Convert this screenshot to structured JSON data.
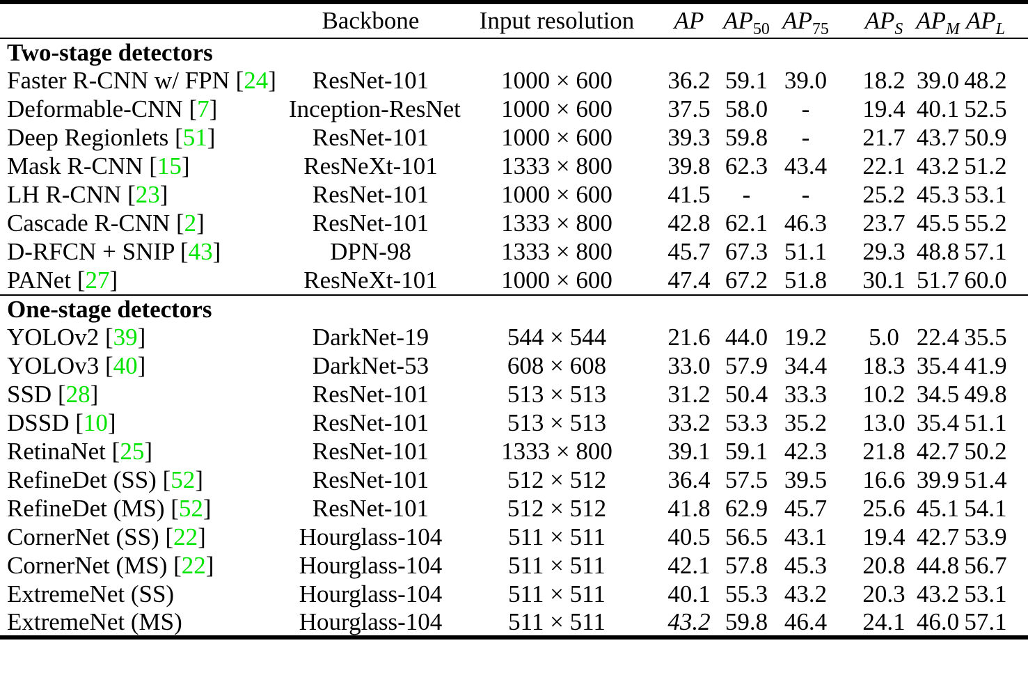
{
  "table": {
    "colors": {
      "citation_green": "#00e400",
      "text_black": "#000000"
    },
    "headers": {
      "method": "",
      "backbone": "Backbone",
      "input_resolution": "Input resolution",
      "metrics": [
        {
          "base": "AP",
          "sub": ""
        },
        {
          "base": "AP",
          "sub": "50",
          "italic_sub": false
        },
        {
          "base": "AP",
          "sub": "75",
          "italic_sub": false
        },
        {
          "base": "AP",
          "sub": "S",
          "italic_sub": true
        },
        {
          "base": "AP",
          "sub": "M",
          "italic_sub": true
        },
        {
          "base": "AP",
          "sub": "L",
          "italic_sub": true
        }
      ]
    },
    "sections": [
      {
        "title": "Two-stage detectors",
        "rows": [
          {
            "method": "Faster R-CNN w/ FPN",
            "cite": "24",
            "backbone": "ResNet-101",
            "resolution": "1000 × 600",
            "ap": "36.2",
            "ap50": "59.1",
            "ap75": "39.0",
            "aps": "18.2",
            "apm": "39.0",
            "apl": "48.2"
          },
          {
            "method": "Deformable-CNN",
            "cite": "7",
            "backbone": "Inception-ResNet",
            "resolution": "1000 × 600",
            "ap": "37.5",
            "ap50": "58.0",
            "ap75": "-",
            "aps": "19.4",
            "apm": "40.1",
            "apl": "52.5"
          },
          {
            "method": "Deep Regionlets",
            "cite": "51",
            "backbone": "ResNet-101",
            "resolution": "1000 × 600",
            "ap": "39.3",
            "ap50": "59.8",
            "ap75": "-",
            "aps": "21.7",
            "apm": "43.7",
            "apl": "50.9"
          },
          {
            "method": "Mask R-CNN",
            "cite": "15",
            "backbone": "ResNeXt-101",
            "resolution": "1333 × 800",
            "ap": "39.8",
            "ap50": "62.3",
            "ap75": "43.4",
            "aps": "22.1",
            "apm": "43.2",
            "apl": "51.2"
          },
          {
            "method": "LH R-CNN",
            "cite": "23",
            "backbone": "ResNet-101",
            "resolution": "1000 × 600",
            "ap": "41.5",
            "ap50": "-",
            "ap75": "-",
            "aps": "25.2",
            "apm": "45.3",
            "apl": "53.1"
          },
          {
            "method": "Cascade R-CNN",
            "cite": "2",
            "backbone": "ResNet-101",
            "resolution": "1333 × 800",
            "ap": "42.8",
            "ap50": "62.1",
            "ap75": "46.3",
            "aps": "23.7",
            "apm": "45.5",
            "apl": "55.2"
          },
          {
            "method": "D-RFCN + SNIP",
            "cite": "43",
            "backbone": "DPN-98",
            "resolution": "1333 × 800",
            "ap": "45.7",
            "ap50": "67.3",
            "ap75": "51.1",
            "aps": "29.3",
            "apm": "48.8",
            "apl": "57.1"
          },
          {
            "method": "PANet",
            "cite": "27",
            "backbone": "ResNeXt-101",
            "resolution": "1000 × 600",
            "ap": "47.4",
            "ap50": "67.2",
            "ap75": "51.8",
            "aps": "30.1",
            "apm": "51.7",
            "apl": "60.0"
          }
        ]
      },
      {
        "title": "One-stage detectors",
        "rows": [
          {
            "method": "YOLOv2",
            "cite": "39",
            "backbone": "DarkNet-19",
            "resolution": "544 × 544",
            "ap": "21.6",
            "ap50": "44.0",
            "ap75": "19.2",
            "aps": "5.0",
            "apm": "22.4",
            "apl": "35.5"
          },
          {
            "method": "YOLOv3",
            "cite": "40",
            "backbone": "DarkNet-53",
            "resolution": "608 × 608",
            "ap": "33.0",
            "ap50": "57.9",
            "ap75": "34.4",
            "aps": "18.3",
            "apm": "35.4",
            "apl": "41.9"
          },
          {
            "method": "SSD",
            "cite": "28",
            "backbone": "ResNet-101",
            "resolution": "513 × 513",
            "ap": "31.2",
            "ap50": "50.4",
            "ap75": "33.3",
            "aps": "10.2",
            "apm": "34.5",
            "apl": "49.8"
          },
          {
            "method": "DSSD",
            "cite": "10",
            "backbone": "ResNet-101",
            "resolution": "513 × 513",
            "ap": "33.2",
            "ap50": "53.3",
            "ap75": "35.2",
            "aps": "13.0",
            "apm": "35.4",
            "apl": "51.1"
          },
          {
            "method": "RetinaNet",
            "cite": "25",
            "backbone": "ResNet-101",
            "resolution": "1333 × 800",
            "ap": "39.1",
            "ap50": "59.1",
            "ap75": "42.3",
            "aps": "21.8",
            "apm": "42.7",
            "apl": "50.2"
          },
          {
            "method": "RefineDet (SS)",
            "cite": "52",
            "backbone": "ResNet-101",
            "resolution": "512 × 512",
            "ap": "36.4",
            "ap50": "57.5",
            "ap75": "39.5",
            "aps": "16.6",
            "apm": "39.9",
            "apl": "51.4"
          },
          {
            "method": "RefineDet (MS)",
            "cite": "52",
            "backbone": "ResNet-101",
            "resolution": "512 × 512",
            "ap": "41.8",
            "ap50": "62.9",
            "ap75": "45.7",
            "aps": "25.6",
            "apm": "45.1",
            "apl": "54.1"
          },
          {
            "method": "CornerNet (SS)",
            "cite": "22",
            "backbone": "Hourglass-104",
            "resolution": "511 × 511",
            "ap": "40.5",
            "ap50": "56.5",
            "ap75": "43.1",
            "aps": "19.4",
            "apm": "42.7",
            "apl": "53.9"
          },
          {
            "method": "CornerNet (MS)",
            "cite": "22",
            "backbone": "Hourglass-104",
            "resolution": "511 × 511",
            "ap": "42.1",
            "ap50": "57.8",
            "ap75": "45.3",
            "aps": "20.8",
            "apm": "44.8",
            "apl": "56.7"
          },
          {
            "method": "ExtremeNet (SS)",
            "cite": null,
            "backbone": "Hourglass-104",
            "resolution": "511 × 511",
            "ap": "40.1",
            "ap50": "55.3",
            "ap75": "43.2",
            "aps": "20.3",
            "apm": "43.2",
            "apl": "53.1"
          },
          {
            "method": "ExtremeNet (MS)",
            "cite": null,
            "backbone": "Hourglass-104",
            "resolution": "511 × 511",
            "ap": "43.2",
            "ap_italic": true,
            "ap50": "59.8",
            "ap75": "46.4",
            "aps": "24.1",
            "apm": "46.0",
            "apl": "57.1"
          }
        ]
      }
    ]
  }
}
